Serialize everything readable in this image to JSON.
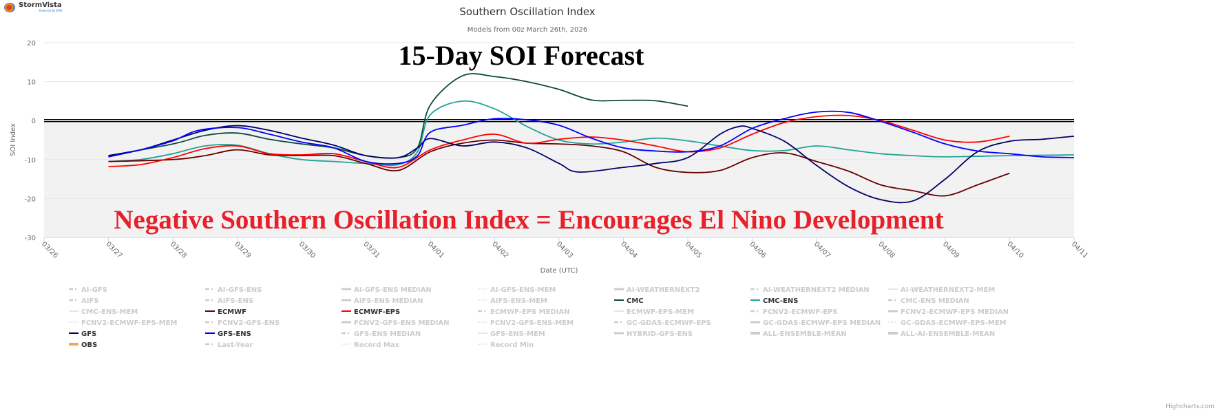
{
  "logo": {
    "name": "StormVista",
    "tagline": "Powered By EMS"
  },
  "credits": "Highcharts.com",
  "chart_data": {
    "type": "line",
    "title": "Southern Oscillation Index",
    "subtitle": "Models from 00z March 26th, 2026",
    "xlabel": "Date (UTC)",
    "ylabel": "SOI Index",
    "ylim": [
      -30,
      20
    ],
    "yticks": [
      20,
      10,
      0,
      -10,
      -20,
      -30
    ],
    "x_unit": "days after 03/26 00z",
    "xlim": [
      0,
      16
    ],
    "xtick_labels": [
      "03/26",
      "03/27",
      "03/28",
      "03/29",
      "03/30",
      "03/31",
      "04/01",
      "04/02",
      "04/03",
      "04/04",
      "04/05",
      "04/06",
      "04/07",
      "04/08",
      "04/09",
      "04/10",
      "04/11"
    ],
    "grid": true,
    "annotations": [
      "15-Day SOI Forecast",
      "Negative Southern Oscillation Index = Encourages El Nino Development"
    ],
    "colors": {
      "shade": "#f2f2f2",
      "zero_line": "#000000",
      "annotation_title": "#000000",
      "annotation_red": "#e8202a"
    },
    "series": [
      {
        "name": "CMC",
        "color": "#0d4a38",
        "points": [
          [
            1,
            -9
          ],
          [
            2,
            -6
          ],
          [
            2.5,
            -3.8
          ],
          [
            3,
            -3.2
          ],
          [
            3.5,
            -4.8
          ],
          [
            4,
            -6
          ],
          [
            4.5,
            -7
          ],
          [
            5,
            -9
          ],
          [
            5.5,
            -9.5
          ],
          [
            5.8,
            -7
          ],
          [
            6,
            4
          ],
          [
            6.5,
            11.5
          ],
          [
            7,
            11.3
          ],
          [
            7.5,
            10
          ],
          [
            8,
            8
          ],
          [
            8.5,
            5.3
          ],
          [
            9,
            5.2
          ],
          [
            9.5,
            5.1
          ],
          [
            10,
            3.7
          ]
        ]
      },
      {
        "name": "CMC-ENS",
        "color": "#1ea493",
        "points": [
          [
            1,
            -10.5
          ],
          [
            1.5,
            -10
          ],
          [
            2,
            -8.5
          ],
          [
            2.5,
            -6.5
          ],
          [
            3,
            -6.3
          ],
          [
            3.5,
            -8.5
          ],
          [
            4,
            -10
          ],
          [
            4.5,
            -10.5
          ],
          [
            5,
            -11
          ],
          [
            5.5,
            -11.3
          ],
          [
            5.8,
            -8
          ],
          [
            6,
            1.5
          ],
          [
            6.5,
            5
          ],
          [
            7,
            3
          ],
          [
            7.5,
            -1.5
          ],
          [
            8,
            -5
          ],
          [
            8.5,
            -6
          ],
          [
            9,
            -5.5
          ],
          [
            9.5,
            -4.5
          ],
          [
            10,
            -5.2
          ],
          [
            10.5,
            -6.5
          ],
          [
            11,
            -7.7
          ],
          [
            11.5,
            -7.7
          ],
          [
            12,
            -6.5
          ],
          [
            12.5,
            -7.5
          ],
          [
            13,
            -8.5
          ],
          [
            13.5,
            -9
          ],
          [
            14,
            -9.3
          ],
          [
            15,
            -9
          ],
          [
            16,
            -8.8
          ]
        ]
      },
      {
        "name": "ECMWF",
        "color": "#660000",
        "points": [
          [
            1,
            -10.5
          ],
          [
            2,
            -10
          ],
          [
            2.5,
            -9
          ],
          [
            3,
            -7.5
          ],
          [
            3.5,
            -8.8
          ],
          [
            4,
            -9
          ],
          [
            4.5,
            -9
          ],
          [
            5,
            -11
          ],
          [
            5.5,
            -12.8
          ],
          [
            6,
            -8
          ],
          [
            6.5,
            -5.8
          ],
          [
            7,
            -5
          ],
          [
            7.5,
            -5.8
          ],
          [
            8,
            -6
          ],
          [
            8.5,
            -6.5
          ],
          [
            9,
            -8
          ],
          [
            9.5,
            -12
          ],
          [
            10,
            -13.3
          ],
          [
            10.5,
            -12.8
          ],
          [
            11,
            -9.5
          ],
          [
            11.5,
            -8.3
          ],
          [
            12,
            -10.5
          ],
          [
            12.5,
            -13
          ],
          [
            13,
            -16.5
          ],
          [
            13.5,
            -18
          ],
          [
            14,
            -19.3
          ],
          [
            14.5,
            -16.5
          ],
          [
            15,
            -13.5
          ]
        ]
      },
      {
        "name": "ECMWF-EPS",
        "color": "#ff0000",
        "points": [
          [
            1,
            -11.8
          ],
          [
            1.5,
            -11.3
          ],
          [
            2,
            -9.5
          ],
          [
            2.5,
            -7.2
          ],
          [
            3,
            -6.5
          ],
          [
            3.5,
            -8.5
          ],
          [
            4,
            -8.8
          ],
          [
            4.5,
            -8.5
          ],
          [
            5,
            -10.5
          ],
          [
            5.5,
            -12
          ],
          [
            6,
            -7.5
          ],
          [
            6.5,
            -5
          ],
          [
            7,
            -3.5
          ],
          [
            7.5,
            -5.8
          ],
          [
            8,
            -4.8
          ],
          [
            8.5,
            -4.2
          ],
          [
            9,
            -5
          ],
          [
            9.5,
            -6.5
          ],
          [
            10,
            -8
          ],
          [
            10.5,
            -7
          ],
          [
            11,
            -3.5
          ],
          [
            11.5,
            -0.5
          ],
          [
            12,
            1
          ],
          [
            12.5,
            1.3
          ],
          [
            13,
            0
          ],
          [
            13.5,
            -2.5
          ],
          [
            14,
            -5
          ],
          [
            14.5,
            -5.5
          ],
          [
            15,
            -4
          ]
        ]
      },
      {
        "name": "GFS",
        "color": "#000066",
        "points": [
          [
            1,
            -9
          ],
          [
            1.5,
            -7.5
          ],
          [
            2,
            -5
          ],
          [
            2.5,
            -2.5
          ],
          [
            3,
            -1.3
          ],
          [
            3.5,
            -2.5
          ],
          [
            4,
            -4.5
          ],
          [
            4.5,
            -6.3
          ],
          [
            5,
            -9
          ],
          [
            5.5,
            -9.5
          ],
          [
            5.8,
            -7
          ],
          [
            6,
            -4.6
          ],
          [
            6.5,
            -6.5
          ],
          [
            7,
            -5.5
          ],
          [
            7.5,
            -7
          ],
          [
            8,
            -11
          ],
          [
            8.3,
            -13.2
          ],
          [
            9,
            -12
          ],
          [
            9.5,
            -11
          ],
          [
            10,
            -9.5
          ],
          [
            10.5,
            -3.5
          ],
          [
            10.8,
            -1.5
          ],
          [
            11,
            -2
          ],
          [
            11.5,
            -5.3
          ],
          [
            12,
            -11.5
          ],
          [
            12.5,
            -17
          ],
          [
            13,
            -20.3
          ],
          [
            13.5,
            -20.6
          ],
          [
            14,
            -15
          ],
          [
            14.5,
            -8
          ],
          [
            15,
            -5.3
          ],
          [
            15.5,
            -4.8
          ],
          [
            16,
            -4
          ]
        ]
      },
      {
        "name": "GFS-ENS",
        "color": "#0000ff",
        "points": [
          [
            1,
            -9.3
          ],
          [
            1.5,
            -7.5
          ],
          [
            2,
            -5.2
          ],
          [
            2.4,
            -2.5
          ],
          [
            3,
            -1.8
          ],
          [
            3.5,
            -3.5
          ],
          [
            4,
            -5.5
          ],
          [
            4.5,
            -7
          ],
          [
            5,
            -10.5
          ],
          [
            5.5,
            -11
          ],
          [
            5.8,
            -9
          ],
          [
            6,
            -3
          ],
          [
            6.5,
            -1.2
          ],
          [
            7,
            0.5
          ],
          [
            7.5,
            0.2
          ],
          [
            8,
            -1.2
          ],
          [
            8.5,
            -4.5
          ],
          [
            9,
            -7
          ],
          [
            9.5,
            -7.8
          ],
          [
            10,
            -8
          ],
          [
            10.5,
            -6.5
          ],
          [
            11,
            -2
          ],
          [
            11.5,
            0.5
          ],
          [
            12,
            2.2
          ],
          [
            12.5,
            2.1
          ],
          [
            13,
            -0.2
          ],
          [
            13.5,
            -3
          ],
          [
            14,
            -6
          ],
          [
            14.5,
            -7.8
          ],
          [
            15,
            -8.5
          ],
          [
            15.5,
            -9.3
          ],
          [
            16,
            -9.5
          ]
        ]
      }
    ],
    "legend": {
      "placement": "bottom",
      "items": [
        {
          "name": "AI-GFS",
          "active": false,
          "style": "dashdot"
        },
        {
          "name": "AI-GFS-ENS",
          "active": false,
          "style": "dashdot"
        },
        {
          "name": "AI-GFS-ENS MEDIAN",
          "active": false,
          "style": "thick"
        },
        {
          "name": "AI-GFS-ENS-MEM",
          "active": false,
          "style": "dotted"
        },
        {
          "name": "AI-WEATHERNEXT2",
          "active": false,
          "style": "thick"
        },
        {
          "name": "AI-WEATHERNEXT2 MEDIAN",
          "active": false,
          "style": "dashdot"
        },
        {
          "name": "AI-WEATHERNEXT2-MEM",
          "active": false,
          "style": "thin"
        },
        {
          "name": "AIFS",
          "active": false,
          "style": "dashdot"
        },
        {
          "name": "AIFS-ENS",
          "active": false,
          "style": "dashdot"
        },
        {
          "name": "AIFS-ENS MEDIAN",
          "active": false,
          "style": "thick"
        },
        {
          "name": "AIFS-ENS-MEM",
          "active": false,
          "style": "dotted"
        },
        {
          "name": "CMC",
          "active": true,
          "color": "#0d4a38",
          "style": "solid"
        },
        {
          "name": "CMC-ENS",
          "active": true,
          "color": "#1ea493",
          "style": "solid"
        },
        {
          "name": "CMC-ENS MEDIAN",
          "active": false,
          "style": "dashdot"
        },
        {
          "name": "CMC-ENS-MEM",
          "active": false,
          "style": "thin"
        },
        {
          "name": "ECMWF",
          "active": true,
          "color": "#660000",
          "style": "solid"
        },
        {
          "name": "ECMWF-EPS",
          "active": true,
          "color": "#ff0000",
          "style": "solid"
        },
        {
          "name": "ECMWF-EPS MEDIAN",
          "active": false,
          "style": "dashdot"
        },
        {
          "name": "ECMWF-EPS-MEM",
          "active": false,
          "style": "thin"
        },
        {
          "name": "FCNV2-ECMWF-EPS",
          "active": false,
          "style": "dashdot"
        },
        {
          "name": "FCNV2-ECMWF-EPS MEDIAN",
          "active": false,
          "style": "thick"
        },
        {
          "name": "FCNV2-ECMWF-EPS-MEM",
          "active": false,
          "style": "dotted"
        },
        {
          "name": "FCNV2-GFS-ENS",
          "active": false,
          "style": "dashdot"
        },
        {
          "name": "FCNV2-GFS-ENS MEDIAN",
          "active": false,
          "style": "thick"
        },
        {
          "name": "FCNV2-GFS-ENS-MEM",
          "active": false,
          "style": "dotted"
        },
        {
          "name": "GC-GDAS-ECMWF-EPS",
          "active": false,
          "style": "dashdot"
        },
        {
          "name": "GC-GDAS-ECMWF-EPS MEDIAN",
          "active": false,
          "style": "thick"
        },
        {
          "name": "GC-GDAS-ECMWF-EPS-MEM",
          "active": false,
          "style": "dotted"
        },
        {
          "name": "GFS",
          "active": true,
          "color": "#000066",
          "style": "solid"
        },
        {
          "name": "GFS-ENS",
          "active": true,
          "color": "#0000ff",
          "style": "solid"
        },
        {
          "name": "GFS-ENS MEDIAN",
          "active": false,
          "style": "dashdot"
        },
        {
          "name": "GFS-ENS-MEM",
          "active": false,
          "style": "thin"
        },
        {
          "name": "HYBRID-GFS-ENS",
          "active": false,
          "style": "thick"
        },
        {
          "name": "ALL-ENSEMBLE-MEAN",
          "active": false,
          "style": "heavy"
        },
        {
          "name": "ALL-AI-ENSEMBLE-MEAN",
          "active": false,
          "style": "heavy"
        },
        {
          "name": "OBS",
          "active": true,
          "color": "#f7a35c",
          "style": "heavy"
        },
        {
          "name": "Last-Year",
          "active": false,
          "style": "dashdot"
        },
        {
          "name": "Record Max",
          "active": false,
          "style": "dotted"
        },
        {
          "name": "Record Min",
          "active": false,
          "style": "dotted"
        }
      ]
    }
  }
}
